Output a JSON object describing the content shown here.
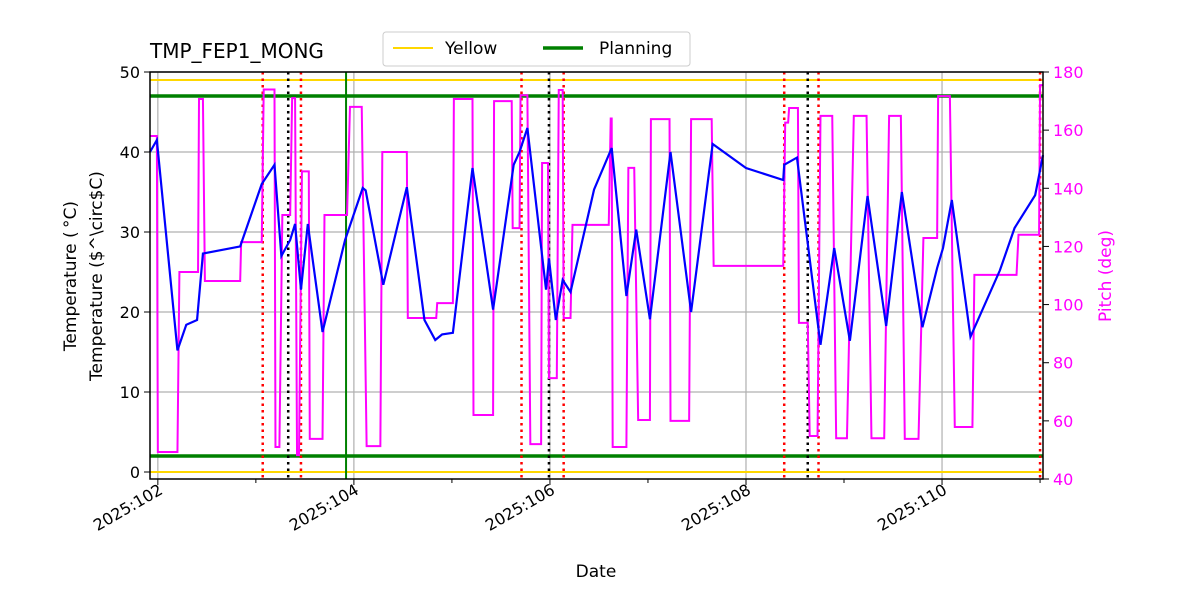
{
  "chart_data": {
    "type": "line",
    "title": "TMP_FEP1_MONG",
    "xlabel": "Date",
    "ylabel": "Temperature ($^\\circ$C)",
    "ylabel_display": "Temperature ( °C)",
    "y2label": "Pitch (deg)",
    "xlim": [
      101.92,
      111.03
    ],
    "ylim": [
      -1,
      50
    ],
    "y2lim": [
      40,
      180
    ],
    "x_ticks": [
      102,
      104,
      106,
      108,
      110
    ],
    "x_tick_labels": [
      "2025:102",
      "2025:104",
      "2025:106",
      "2025:108",
      "2025:110"
    ],
    "y_ticks": [
      0,
      10,
      20,
      30,
      40,
      50
    ],
    "y2_ticks": [
      40,
      60,
      80,
      100,
      120,
      140,
      160,
      180
    ],
    "grid": true,
    "legend": {
      "placement": "top-center",
      "entries": [
        "Yellow",
        "Planning"
      ]
    },
    "colors": {
      "temperature": "#0000ff",
      "pitch": "#ff00ff",
      "yellow": "#ffd700",
      "planning": "#008000",
      "red_marker": "#ff0000",
      "black_marker": "#000000"
    },
    "limits": {
      "yellow": [
        0,
        49
      ],
      "planning": [
        2,
        47
      ]
    },
    "temperature": [
      [
        101.92,
        40
      ],
      [
        101.99,
        41.5
      ],
      [
        102.2,
        15.2
      ],
      [
        102.29,
        18.4
      ],
      [
        102.4,
        19
      ],
      [
        102.46,
        27.3
      ],
      [
        102.84,
        28.2
      ],
      [
        103.06,
        36
      ],
      [
        103.19,
        38.4
      ],
      [
        103.26,
        27
      ],
      [
        103.35,
        29
      ],
      [
        103.4,
        31
      ],
      [
        103.46,
        22.8
      ],
      [
        103.53,
        31
      ],
      [
        103.68,
        17.5
      ],
      [
        103.91,
        29
      ],
      [
        104.09,
        35.5
      ],
      [
        104.12,
        35.2
      ],
      [
        104.3,
        23.4
      ],
      [
        104.54,
        35.6
      ],
      [
        104.72,
        19
      ],
      [
        104.83,
        16.5
      ],
      [
        104.9,
        17.2
      ],
      [
        105.01,
        17.4
      ],
      [
        105.21,
        38
      ],
      [
        105.42,
        20.3
      ],
      [
        105.63,
        38.4
      ],
      [
        105.69,
        40
      ],
      [
        105.77,
        43
      ],
      [
        105.96,
        22.8
      ],
      [
        105.99,
        26.7
      ],
      [
        106.06,
        19
      ],
      [
        106.13,
        24
      ],
      [
        106.21,
        22.5
      ],
      [
        106.45,
        35.3
      ],
      [
        106.63,
        40.5
      ],
      [
        106.78,
        22
      ],
      [
        106.88,
        30.3
      ],
      [
        107.02,
        19.1
      ],
      [
        107.23,
        40
      ],
      [
        107.44,
        20
      ],
      [
        107.66,
        41
      ],
      [
        108.0,
        38
      ],
      [
        108.38,
        36.5
      ],
      [
        108.39,
        38.4
      ],
      [
        108.52,
        39.3
      ],
      [
        108.76,
        15.9
      ],
      [
        108.9,
        28
      ],
      [
        109.06,
        16.4
      ],
      [
        109.24,
        34.5
      ],
      [
        109.43,
        18.25
      ],
      [
        109.59,
        35
      ],
      [
        109.8,
        18.1
      ],
      [
        109.95,
        25.5
      ],
      [
        110.01,
        28
      ],
      [
        110.1,
        34
      ],
      [
        110.29,
        16.9
      ],
      [
        110.59,
        25.2
      ],
      [
        110.74,
        30.5
      ],
      [
        110.95,
        34.6
      ],
      [
        111.03,
        39.6
      ]
    ],
    "pitch_steps": [
      [
        101.92,
        101.99,
        158
      ],
      [
        102.0,
        102.2,
        49.3
      ],
      [
        102.22,
        102.41,
        111.2
      ],
      [
        102.42,
        102.46,
        170.7
      ],
      [
        102.48,
        102.84,
        108.1
      ],
      [
        102.85,
        103.06,
        121.5
      ],
      [
        103.08,
        103.19,
        174
      ],
      [
        103.2,
        103.24,
        51
      ],
      [
        103.27,
        103.35,
        130.8
      ],
      [
        103.37,
        103.4,
        171
      ],
      [
        103.42,
        103.44,
        48.2
      ],
      [
        103.47,
        103.54,
        145.8
      ],
      [
        103.55,
        103.68,
        53.8
      ],
      [
        103.7,
        103.93,
        130.8
      ],
      [
        103.96,
        104.08,
        168
      ],
      [
        104.13,
        104.27,
        51.3
      ],
      [
        104.29,
        104.54,
        152.5
      ],
      [
        104.55,
        104.84,
        95.4
      ],
      [
        104.85,
        105.01,
        100.5
      ],
      [
        105.02,
        105.21,
        170.7
      ],
      [
        105.22,
        105.42,
        62
      ],
      [
        105.43,
        105.61,
        170
      ],
      [
        105.62,
        105.69,
        126.3
      ],
      [
        105.7,
        105.77,
        172
      ],
      [
        105.8,
        105.91,
        52
      ],
      [
        105.92,
        105.98,
        148.7
      ],
      [
        105.99,
        106.07,
        74.7
      ],
      [
        106.09,
        106.13,
        173.8
      ],
      [
        106.14,
        106.21,
        95.4
      ],
      [
        106.23,
        106.6,
        127.4
      ],
      [
        106.62,
        106.63,
        164
      ],
      [
        106.64,
        106.78,
        51
      ],
      [
        106.8,
        106.86,
        147
      ],
      [
        106.9,
        107.02,
        60.3
      ],
      [
        107.03,
        107.22,
        163.8
      ],
      [
        107.23,
        107.42,
        60
      ],
      [
        107.44,
        107.65,
        163.8
      ],
      [
        107.67,
        108.38,
        113.3
      ],
      [
        108.4,
        108.43,
        162.6
      ],
      [
        108.44,
        108.53,
        167.6
      ],
      [
        108.54,
        108.63,
        93.7
      ],
      [
        108.65,
        108.73,
        54.8
      ],
      [
        108.76,
        108.88,
        164.9
      ],
      [
        108.92,
        109.03,
        54
      ],
      [
        109.1,
        109.23,
        164.9
      ],
      [
        109.28,
        109.41,
        54
      ],
      [
        109.46,
        109.58,
        164.9
      ],
      [
        109.62,
        109.76,
        53.8
      ],
      [
        109.81,
        109.95,
        122.9
      ],
      [
        109.96,
        110.08,
        171.7
      ],
      [
        110.13,
        110.31,
        57.9
      ],
      [
        110.33,
        110.76,
        110.2
      ],
      [
        110.78,
        110.99,
        124
      ],
      [
        111.0,
        111.03,
        175.5
      ]
    ],
    "red_dotted_lines": [
      103.07,
      103.46,
      105.71,
      106.14,
      108.39,
      108.74,
      111.0
    ],
    "black_dotted_lines": [
      103.33,
      105.99,
      108.63
    ],
    "green_vertical_line": 103.92
  }
}
